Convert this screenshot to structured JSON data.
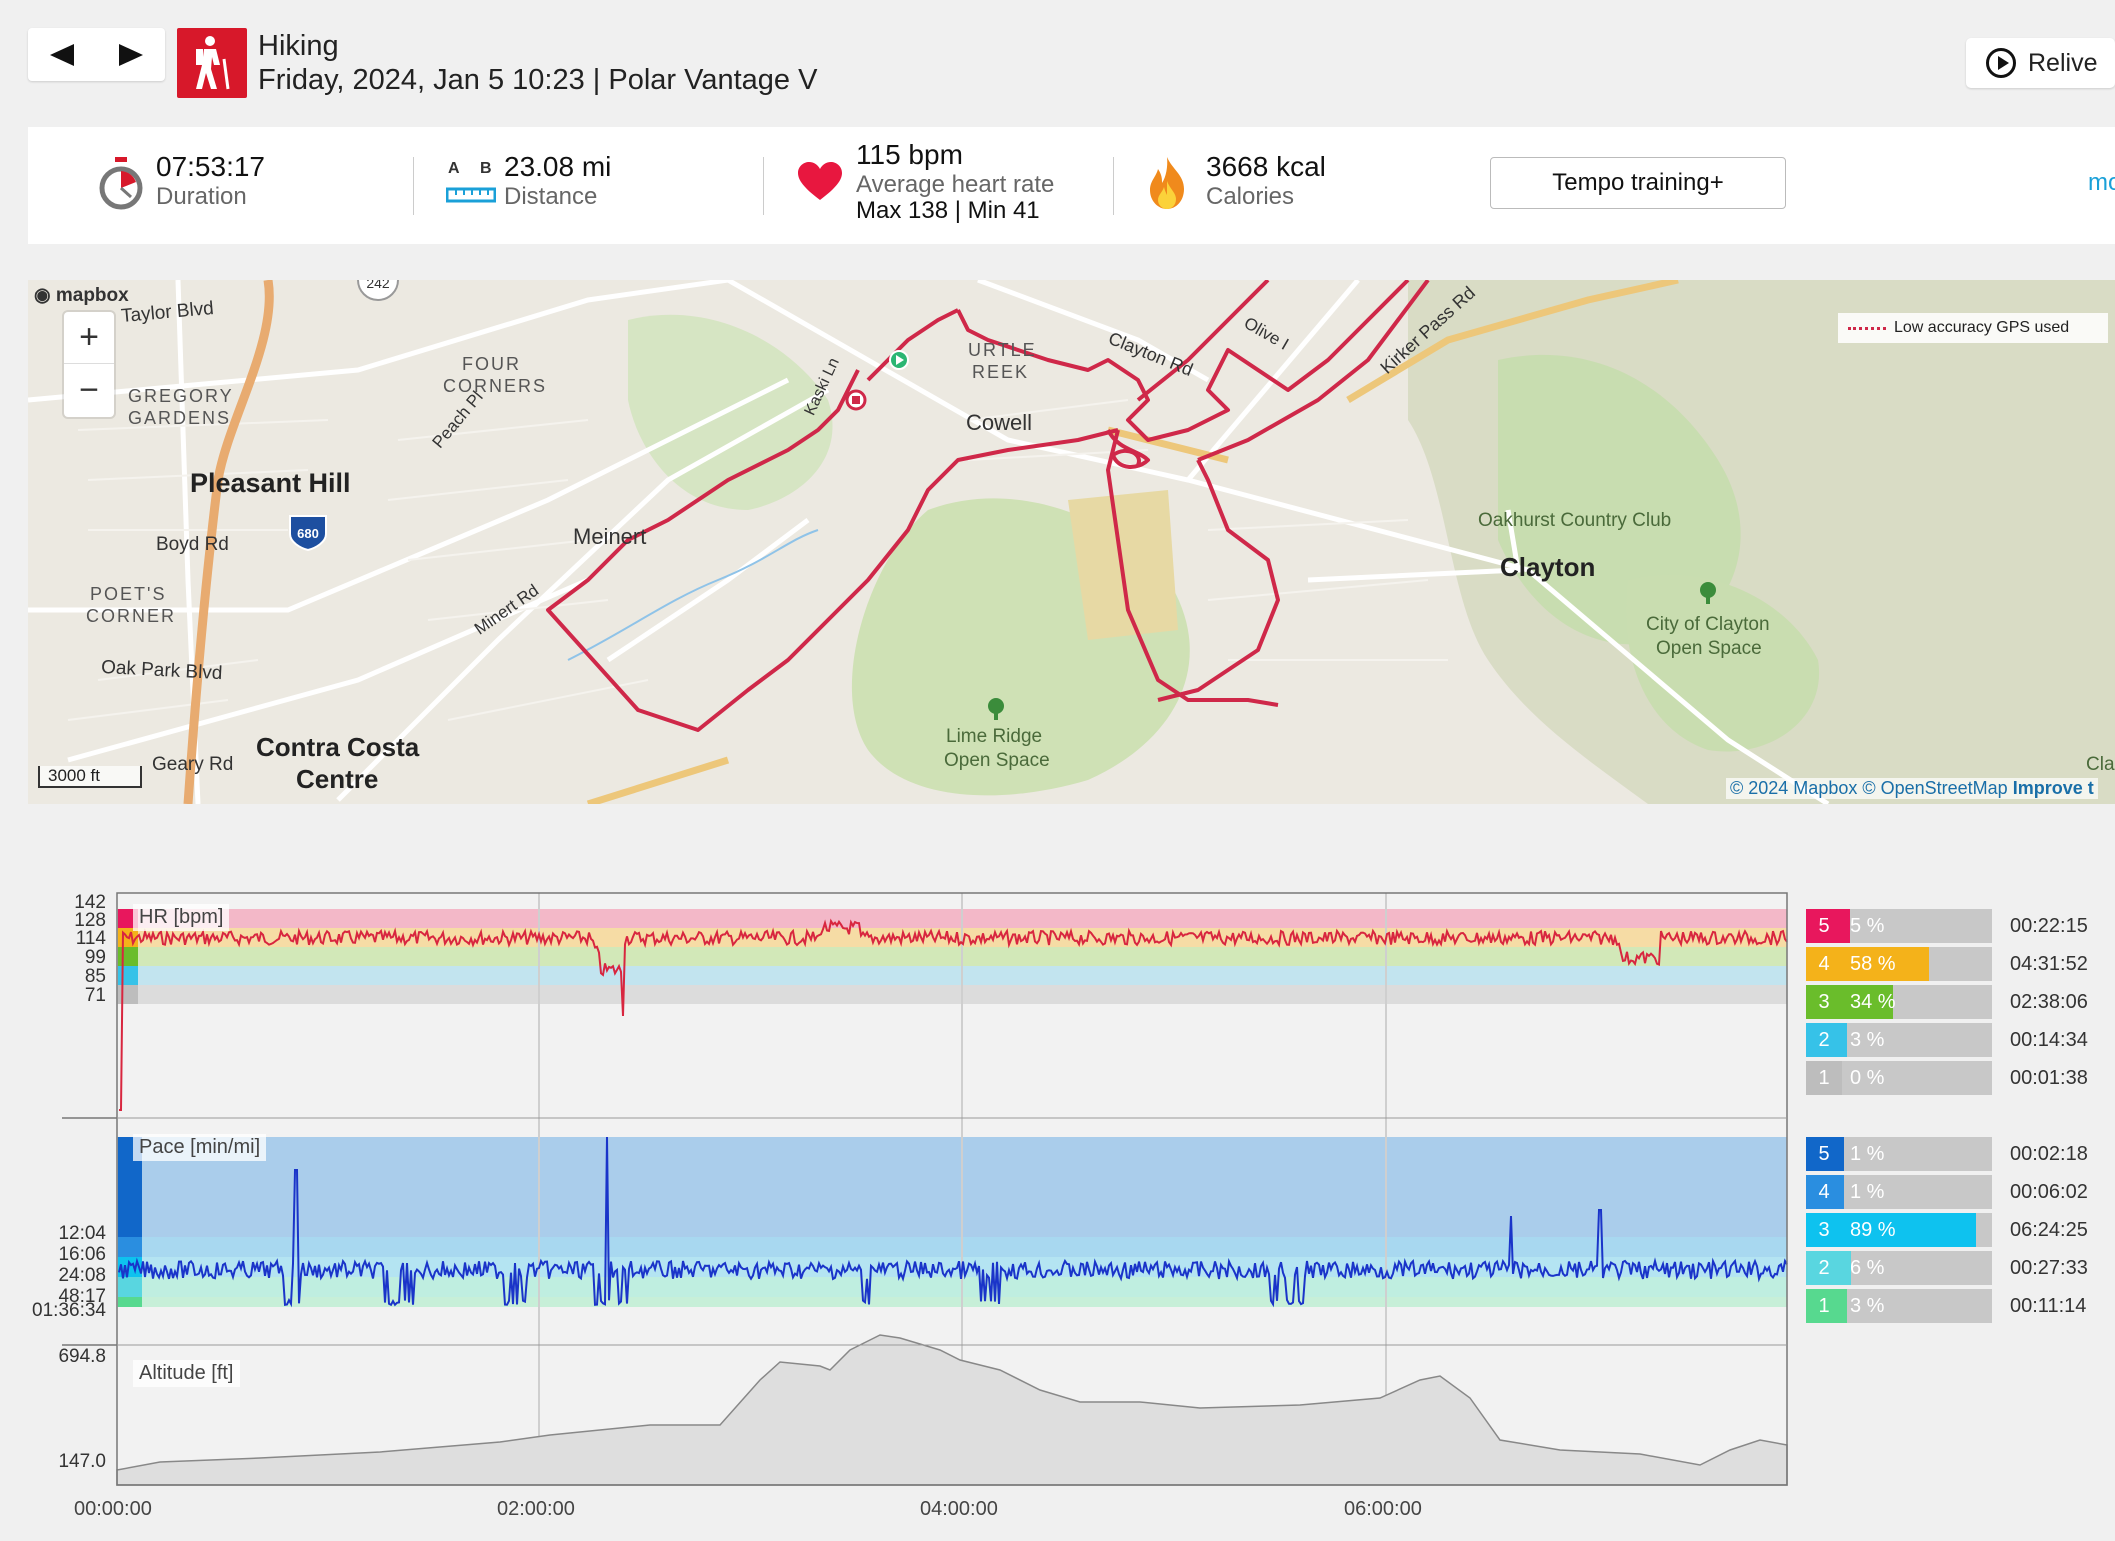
{
  "header": {
    "title": "Hiking",
    "subtitle": "Friday, 2024, Jan 5 10:23 | Polar Vantage V",
    "relive_label": "Relive"
  },
  "summary": {
    "duration_value": "07:53:17",
    "duration_label": "Duration",
    "distance_a": "A",
    "distance_b": "B",
    "distance_value": "23.08 mi",
    "distance_label": "Distance",
    "hr_value": "115 bpm",
    "hr_label": "Average heart rate",
    "hr_maxmin": "Max 138  |  Min 41",
    "calories_value": "3668 kcal",
    "calories_label": "Calories",
    "training_button": "Tempo training+",
    "more_link": "mo"
  },
  "map": {
    "logo": "mapbox",
    "zoom_in": "+",
    "zoom_out": "−",
    "legend": "Low accuracy GPS used",
    "scale": "3000 ft",
    "attribution_copy": "© 2024 Mapbox © ",
    "attribution_osm": "OpenStreetMap",
    "attribution_improve": " Improve t",
    "labels": {
      "taylor": "Taylor Blvd",
      "four_corners_1": "FOUR",
      "four_corners_2": "CORNERS",
      "gregory_1": "GREGORY",
      "gregory_2": "GARDENS",
      "pleasant_hill": "Pleasant Hill",
      "peach": "Peach Pl",
      "boyd": "Boyd Rd",
      "meinert": "Meinert",
      "minert": "Minert Rd",
      "poets_1": "POET'S",
      "poets_2": "CORNER",
      "oak_park": "Oak Park Blvd",
      "geary": "Geary Rd",
      "contra_1": "Contra Costa",
      "contra_2": "Centre",
      "kaski": "Kaski Ln",
      "turtle_1": "URTLE",
      "turtle_2": "REEK",
      "cowell": "Cowell",
      "clayton_rd": "Clayton Rd",
      "olive": "Olive I",
      "kirker": "Kirker Pass Rd",
      "oakhurst": "Oakhurst Country Club",
      "clayton": "Clayton",
      "city_clayton_1": "City of Clayton",
      "city_clayton_2": "Open Space",
      "lime_1": "Lime Ridge",
      "lime_2": "Open Space",
      "shield_680": "680",
      "shield_242": "242",
      "cla": "Cla"
    }
  },
  "charts": {
    "hr_title": "HR [bpm]",
    "pace_title": "Pace [min/mi]",
    "alt_title": "Altitude [ft]",
    "hr_ticks": [
      "142",
      "128",
      "114",
      "99",
      "85",
      "71"
    ],
    "pace_ticks": [
      "12:04",
      "16:06",
      "24:08",
      "48:17",
      "01:36:34"
    ],
    "alt_ticks": [
      "694.8",
      "147.0"
    ],
    "time_ticks": [
      "00:00:00",
      "02:00:00",
      "04:00:00",
      "06:00:00"
    ],
    "hr_zones": [
      {
        "zone": "5",
        "pct": "5 %",
        "fraction": 0.05,
        "time": "00:22:15",
        "color": "#e8175d"
      },
      {
        "zone": "4",
        "pct": "58 %",
        "fraction": 0.58,
        "time": "04:31:52",
        "color": "#f4b21a"
      },
      {
        "zone": "3",
        "pct": "34 %",
        "fraction": 0.34,
        "time": "02:38:06",
        "color": "#6abd2b"
      },
      {
        "zone": "2",
        "pct": "3 %",
        "fraction": 0.03,
        "time": "00:14:34",
        "color": "#36c2e8"
      },
      {
        "zone": "1",
        "pct": "0 %",
        "fraction": 0.0,
        "time": "00:01:38",
        "color": "#bdbdbd"
      }
    ],
    "pace_zones": [
      {
        "zone": "5",
        "pct": "1 %",
        "fraction": 0.01,
        "time": "00:02:18",
        "color": "#1167c9"
      },
      {
        "zone": "4",
        "pct": "1 %",
        "fraction": 0.01,
        "time": "00:06:02",
        "color": "#2a8ee0"
      },
      {
        "zone": "3",
        "pct": "89 %",
        "fraction": 0.89,
        "time": "06:24:25",
        "color": "#0ec2ef"
      },
      {
        "zone": "2",
        "pct": "6 %",
        "fraction": 0.06,
        "time": "00:27:33",
        "color": "#59d6e0"
      },
      {
        "zone": "1",
        "pct": "3 %",
        "fraction": 0.03,
        "time": "00:11:14",
        "color": "#57d98f"
      }
    ]
  },
  "colors": {
    "route": "#cf2849",
    "hr_line": "#d8263f",
    "pace_line": "#1a34c9",
    "accent": "#1aa0d8",
    "sport": "#d7182a"
  }
}
